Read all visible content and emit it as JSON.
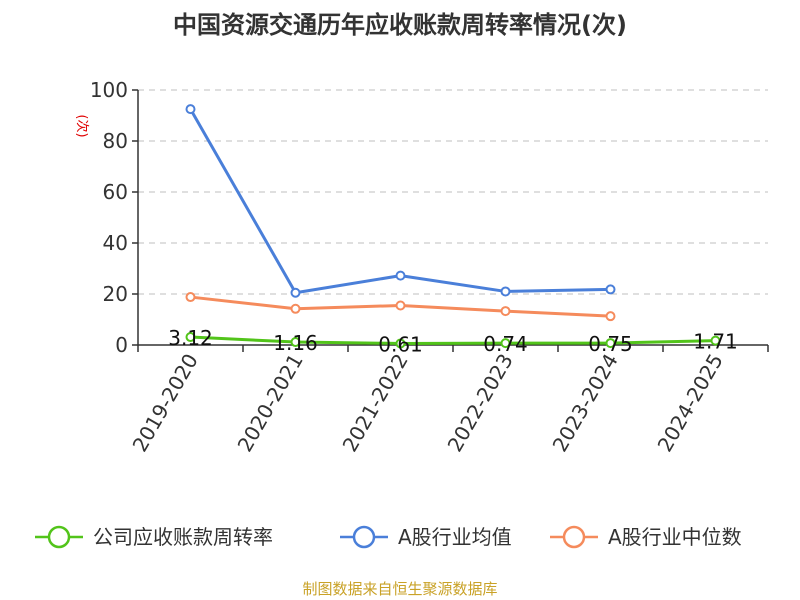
{
  "chart_data": {
    "type": "line",
    "title": "中国资源交通历年应收账款周转率情况(次)",
    "ylabel": "(次)",
    "xlabel": "",
    "categories": [
      "2019-2020",
      "2020-2021",
      "2021-2022",
      "2022-2023",
      "2023-2024",
      "2024-2025"
    ],
    "yticks": [
      0,
      20,
      40,
      60,
      80,
      100
    ],
    "ylim": [
      0,
      100
    ],
    "grid": true,
    "legend_position": "bottom",
    "series": [
      {
        "name": "公司应收账款周转率",
        "color": "#52c41a",
        "values": [
          3.12,
          1.16,
          0.61,
          0.74,
          0.75,
          1.71
        ],
        "labels": [
          "3.12",
          "1.16",
          "0.61",
          "0.74",
          "0.75",
          "1.71"
        ]
      },
      {
        "name": "A股行业均值",
        "color": "#4a7fd9",
        "values": [
          92.5,
          20.5,
          27.2,
          21.0,
          21.8,
          null
        ]
      },
      {
        "name": "A股行业中位数",
        "color": "#f58b5c",
        "values": [
          18.8,
          14.2,
          15.5,
          13.3,
          11.3,
          null
        ]
      }
    ]
  },
  "source": "制图数据来自恒生聚源数据库"
}
